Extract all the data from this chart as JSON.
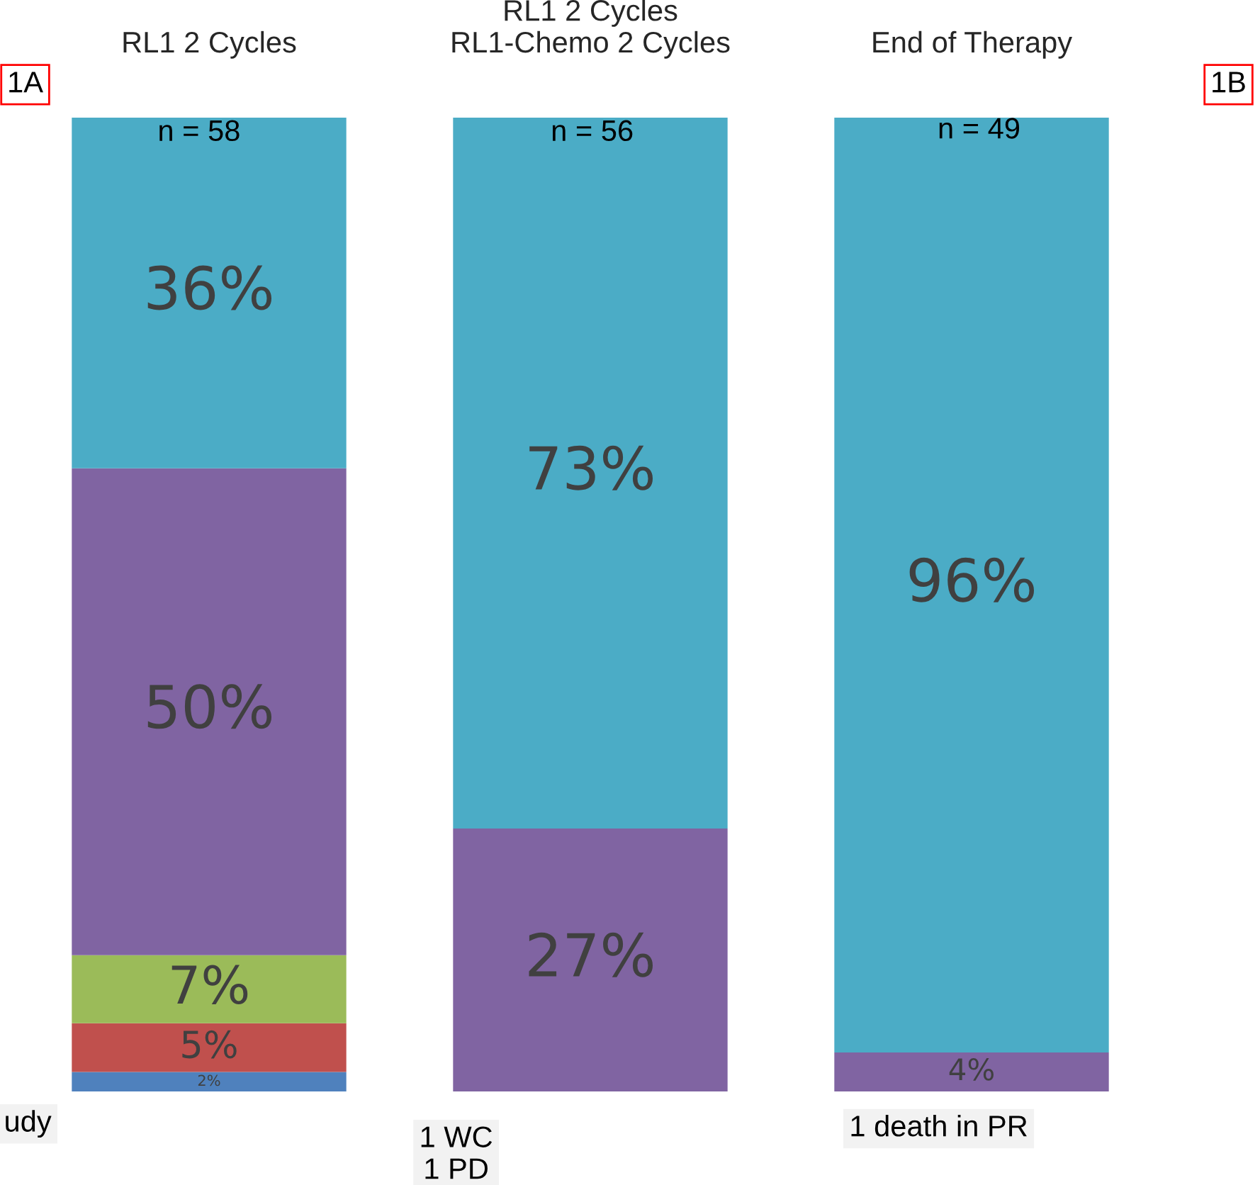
{
  "chart_data": {
    "type": "bar",
    "stacked": true,
    "categories": [
      "RL1 2 Cycles",
      "RL1 2 Cycles\nRL1-Chemo 2 Cycles",
      "End of Therapy"
    ],
    "series": [
      {
        "color": "#4f81bd",
        "values": [
          2,
          null,
          null
        ],
        "value_labels": [
          "2%",
          null,
          null
        ]
      },
      {
        "color": "#c0504d",
        "values": [
          5,
          null,
          null
        ],
        "value_labels": [
          "5%",
          null,
          null
        ]
      },
      {
        "color": "#9bbb59",
        "values": [
          7,
          null,
          null
        ],
        "value_labels": [
          "7%",
          null,
          null
        ]
      },
      {
        "color": "#8064a2",
        "values": [
          50,
          27,
          4
        ],
        "value_labels": [
          "50%",
          "27%",
          "4%"
        ]
      },
      {
        "color": "#4bacc6",
        "values": [
          36,
          73,
          96
        ],
        "value_labels": [
          "36%",
          "73%",
          "96%"
        ]
      }
    ],
    "annotations": [
      "1A",
      "1B",
      "n = 58",
      "n = 56",
      "n = 49",
      "udy",
      "1 WC\n1 PD",
      "1 death in PR"
    ]
  }
}
